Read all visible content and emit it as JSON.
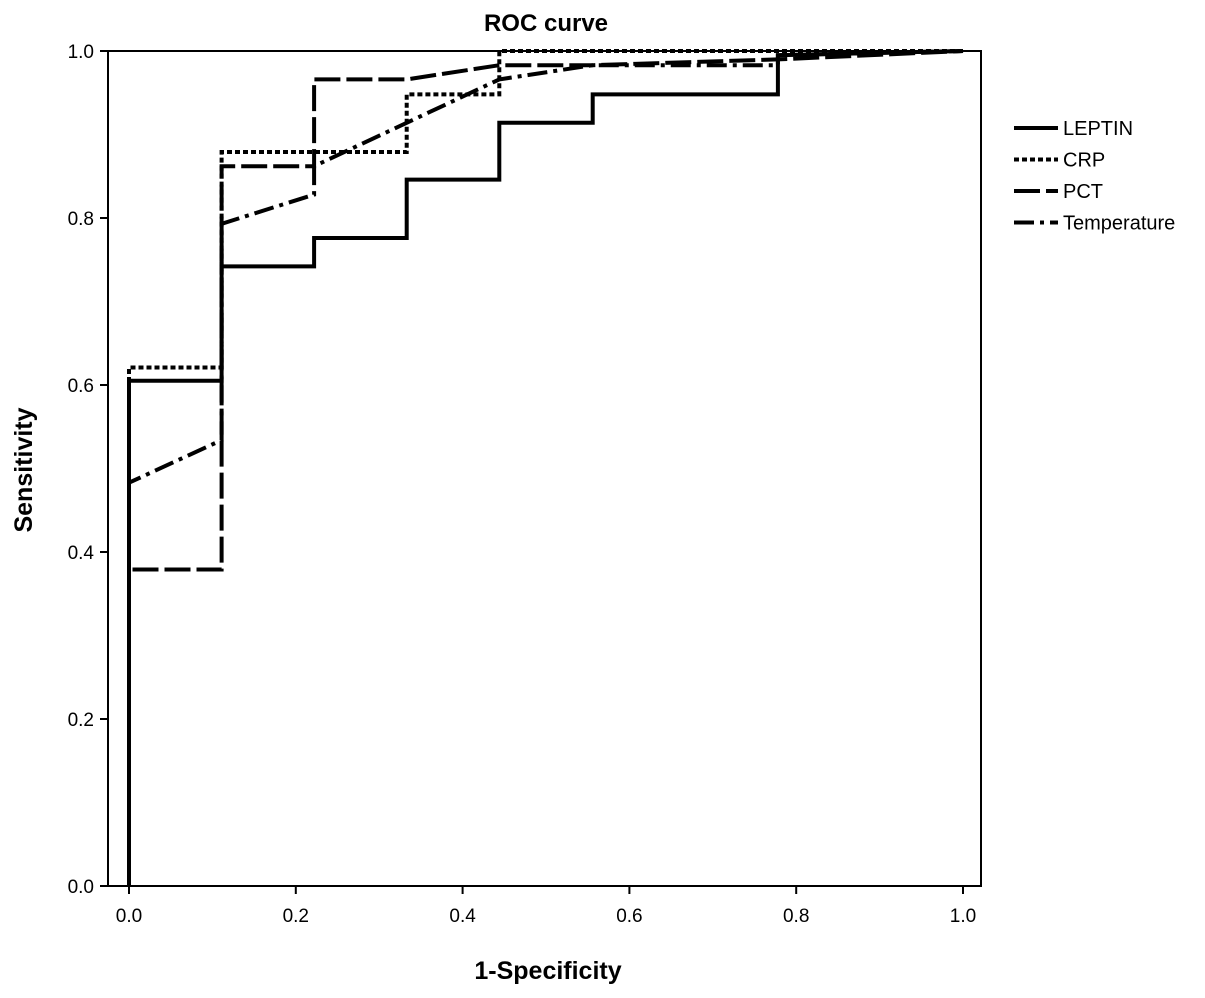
{
  "chart_data": {
    "type": "line",
    "title": "ROC curve",
    "xlabel": "1-Specificity",
    "ylabel": "Sensitivity",
    "xlim": [
      0.0,
      1.0
    ],
    "ylim": [
      0.0,
      1.0
    ],
    "xticks": [
      "0.0",
      "0.2",
      "0.4",
      "0.6",
      "0.8",
      "1.0"
    ],
    "yticks": [
      "0.0",
      "0.2",
      "0.4",
      "0.6",
      "0.8",
      "1.0"
    ],
    "grid": false,
    "legend_position": "right",
    "series": [
      {
        "name": "LEPTIN",
        "style": "solid",
        "points": [
          [
            0,
            0
          ],
          [
            0,
            0.605
          ],
          [
            0.111,
            0.605
          ],
          [
            0.111,
            0.742
          ],
          [
            0.222,
            0.742
          ],
          [
            0.222,
            0.776
          ],
          [
            0.333,
            0.776
          ],
          [
            0.333,
            0.846
          ],
          [
            0.444,
            0.846
          ],
          [
            0.444,
            0.914
          ],
          [
            0.556,
            0.914
          ],
          [
            0.556,
            0.948
          ],
          [
            0.778,
            0.948
          ],
          [
            0.778,
            0.995
          ],
          [
            1,
            1
          ]
        ]
      },
      {
        "name": "CRP",
        "style": "dotted",
        "points": [
          [
            0,
            0
          ],
          [
            0,
            0.621
          ],
          [
            0.111,
            0.621
          ],
          [
            0.111,
            0.879
          ],
          [
            0.333,
            0.879
          ],
          [
            0.333,
            0.948
          ],
          [
            0.444,
            0.948
          ],
          [
            0.444,
            1
          ],
          [
            1,
            1
          ]
        ]
      },
      {
        "name": "PCT",
        "style": "long-dash",
        "points": [
          [
            0,
            0
          ],
          [
            0,
            0.379
          ],
          [
            0.111,
            0.379
          ],
          [
            0.111,
            0.862
          ],
          [
            0.222,
            0.862
          ],
          [
            0.222,
            0.966
          ],
          [
            0.333,
            0.966
          ],
          [
            0.444,
            0.983
          ],
          [
            0.556,
            0.983
          ],
          [
            0.778,
            0.99
          ],
          [
            1,
            1
          ]
        ]
      },
      {
        "name": "Temperature",
        "style": "dash-dot",
        "points": [
          [
            0,
            0
          ],
          [
            0,
            0.483
          ],
          [
            0.111,
            0.534
          ],
          [
            0.111,
            0.793
          ],
          [
            0.222,
            0.828
          ],
          [
            0.222,
            0.862
          ],
          [
            0.333,
            0.914
          ],
          [
            0.444,
            0.966
          ],
          [
            0.556,
            0.983
          ],
          [
            0.778,
            0.983
          ],
          [
            0.778,
            0.995
          ],
          [
            1,
            1
          ]
        ]
      }
    ]
  }
}
